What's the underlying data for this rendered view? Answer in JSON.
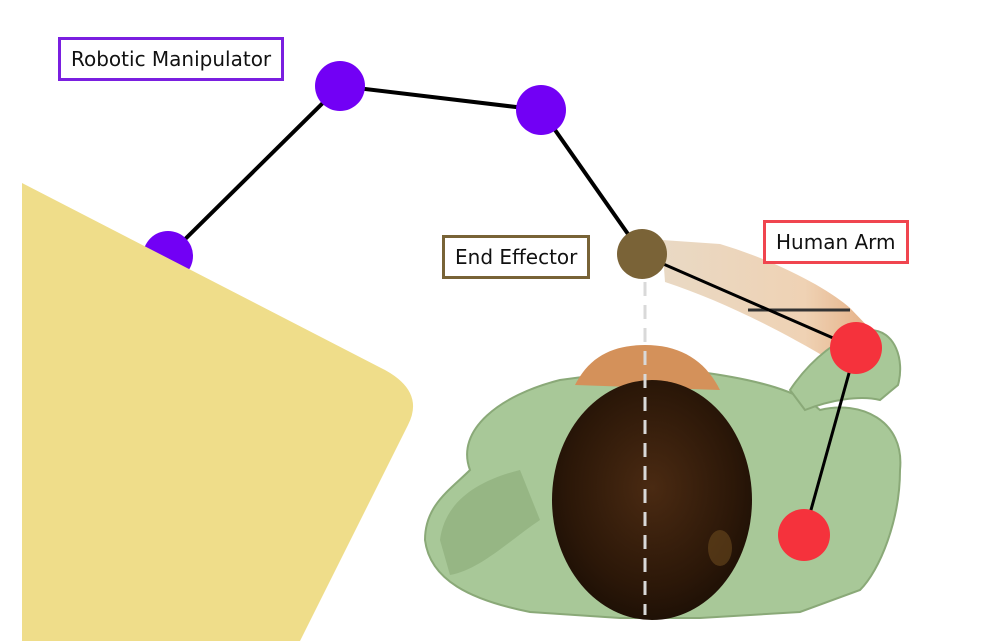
{
  "labels": {
    "robotic_manipulator": "Robotic Manipulator",
    "end_effector": "End Effector",
    "human_arm": "Human Arm"
  },
  "colors": {
    "robot_joint": "#7200f5",
    "end_effector": "#7a6337",
    "human_joint": "#f5323c",
    "table": "#efdd8a",
    "link": "#000000"
  }
}
